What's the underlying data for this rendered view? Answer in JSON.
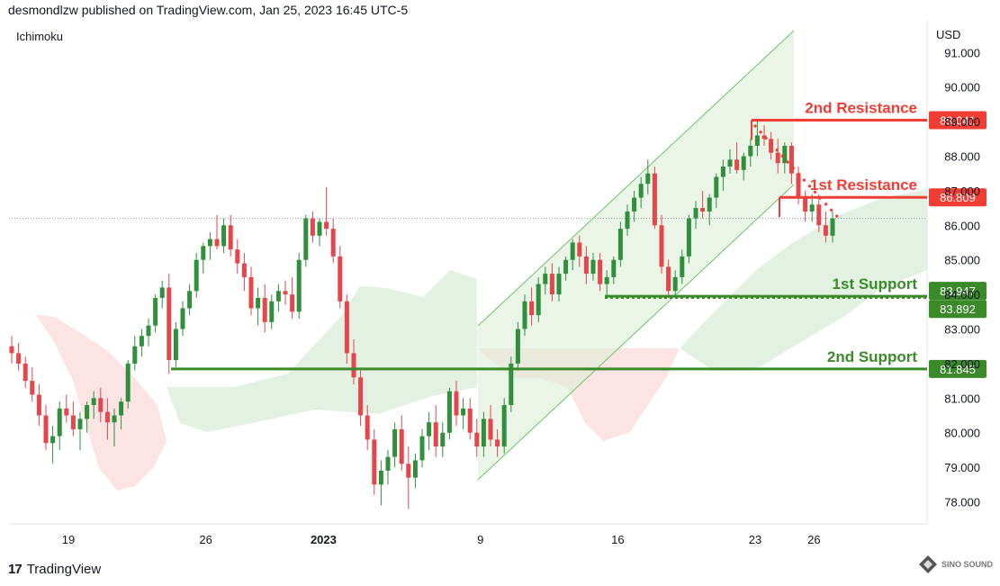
{
  "header": {
    "published": "desmondlzw published on TradingView.com, Jan 25, 2023 16:45 UTC-5"
  },
  "indicator_label": "Ichimoku",
  "currency": "USD",
  "footer": {
    "logo_mark": "17",
    "brand": "TradingView"
  },
  "watermark": {
    "line1": "SINO SOUND"
  },
  "colors": {
    "up": "#2f8f3a",
    "down": "#e5454b",
    "resistance": "#f23d35",
    "support": "#3a8a2a",
    "cloud_green": "#e3f1e3",
    "cloud_red": "#fde4e4",
    "channel": "#6cc36a"
  },
  "chart_data": {
    "type": "candlestick",
    "yaxis": {
      "min": 77.5,
      "max": 91.2,
      "ticks": [
        "78.000",
        "79.000",
        "80.000",
        "81.000",
        "82.000",
        "83.000",
        "84.000",
        "85.000",
        "86.000",
        "87.000",
        "88.000",
        "89.000",
        "90.000",
        "91.000"
      ]
    },
    "xaxis_ticks": [
      {
        "label": "19",
        "day": 19,
        "bold": false
      },
      {
        "label": "26",
        "day": 26,
        "bold": false
      },
      {
        "label": "2023",
        "day": 32,
        "bold": true
      },
      {
        "label": "9",
        "day": 40,
        "bold": false
      },
      {
        "label": "16",
        "day": 47,
        "bold": false
      },
      {
        "label": "23",
        "day": 54,
        "bold": false
      },
      {
        "label": "26",
        "day": 57,
        "bold": false
      }
    ],
    "levels": [
      {
        "label": "2nd Resistance",
        "value": 89.041,
        "value_label": "89.041",
        "kind": "resistance"
      },
      {
        "label": "1st Resistance",
        "value": 86.809,
        "value_label": "86.809",
        "kind": "resistance"
      },
      {
        "label": "1st Support",
        "value": 83.947,
        "value_label": "83.947",
        "kind": "support"
      },
      {
        "label": "",
        "value": 83.892,
        "value_label": "83.892",
        "kind": "support"
      },
      {
        "label": "2nd Support",
        "value": 81.845,
        "value_label": "81.845",
        "kind": "support"
      }
    ],
    "last_price": 86.2,
    "candles": [
      [
        82.5,
        82.8,
        82.0,
        82.3
      ],
      [
        82.3,
        82.6,
        81.8,
        82.0
      ],
      [
        82.0,
        82.2,
        81.3,
        81.5
      ],
      [
        81.5,
        81.9,
        80.9,
        81.1
      ],
      [
        81.1,
        81.4,
        80.2,
        80.5
      ],
      [
        80.5,
        80.8,
        79.5,
        79.7
      ],
      [
        79.7,
        80.2,
        79.1,
        79.9
      ],
      [
        79.9,
        80.9,
        79.5,
        80.7
      ],
      [
        80.7,
        81.1,
        80.3,
        80.5
      ],
      [
        80.5,
        80.9,
        79.9,
        80.1
      ],
      [
        80.1,
        80.6,
        79.5,
        80.4
      ],
      [
        80.4,
        80.9,
        80.0,
        80.8
      ],
      [
        80.8,
        81.2,
        80.4,
        81.0
      ],
      [
        81.0,
        81.3,
        80.3,
        80.6
      ],
      [
        80.6,
        81.0,
        79.8,
        80.3
      ],
      [
        80.3,
        80.7,
        79.6,
        80.5
      ],
      [
        80.5,
        81.0,
        80.1,
        80.9
      ],
      [
        80.9,
        82.1,
        80.7,
        82.0
      ],
      [
        82.0,
        82.8,
        81.8,
        82.5
      ],
      [
        82.5,
        83.0,
        82.2,
        82.8
      ],
      [
        82.8,
        83.3,
        82.5,
        83.1
      ],
      [
        83.1,
        84.0,
        82.9,
        83.9
      ],
      [
        83.9,
        84.4,
        83.6,
        84.2
      ],
      [
        84.2,
        84.6,
        81.7,
        82.1
      ],
      [
        82.1,
        83.2,
        81.9,
        83.0
      ],
      [
        83.0,
        83.8,
        82.8,
        83.6
      ],
      [
        83.6,
        84.3,
        83.4,
        84.1
      ],
      [
        84.1,
        85.2,
        83.9,
        85.0
      ],
      [
        85.0,
        85.5,
        84.6,
        85.4
      ],
      [
        85.4,
        85.8,
        85.0,
        85.6
      ],
      [
        85.6,
        86.3,
        85.3,
        85.4
      ],
      [
        85.4,
        86.2,
        85.2,
        86.0
      ],
      [
        86.0,
        86.3,
        85.1,
        85.3
      ],
      [
        85.3,
        85.6,
        84.6,
        84.9
      ],
      [
        84.9,
        85.2,
        84.1,
        84.5
      ],
      [
        84.5,
        84.8,
        83.4,
        83.6
      ],
      [
        83.6,
        84.2,
        83.1,
        83.9
      ],
      [
        83.9,
        84.3,
        82.9,
        83.2
      ],
      [
        83.2,
        84.0,
        83.0,
        83.8
      ],
      [
        83.8,
        84.3,
        83.5,
        84.1
      ],
      [
        84.1,
        84.4,
        83.7,
        84.0
      ],
      [
        84.0,
        84.5,
        83.3,
        83.5
      ],
      [
        83.5,
        85.2,
        83.3,
        85.0
      ],
      [
        85.0,
        86.3,
        84.8,
        86.2
      ],
      [
        86.2,
        86.4,
        85.5,
        85.7
      ],
      [
        85.7,
        86.2,
        85.4,
        86.1
      ],
      [
        86.1,
        87.1,
        85.7,
        85.9
      ],
      [
        85.9,
        86.2,
        84.9,
        85.1
      ],
      [
        85.1,
        85.4,
        83.6,
        83.8
      ],
      [
        83.8,
        84.0,
        82.0,
        82.3
      ],
      [
        82.3,
        82.7,
        81.4,
        81.6
      ],
      [
        81.6,
        81.8,
        80.2,
        80.5
      ],
      [
        80.5,
        80.8,
        79.5,
        79.8
      ],
      [
        79.8,
        80.1,
        78.2,
        78.5
      ],
      [
        78.5,
        79.2,
        77.9,
        78.9
      ],
      [
        78.9,
        79.5,
        78.5,
        79.3
      ],
      [
        79.3,
        80.3,
        79.0,
        80.1
      ],
      [
        80.1,
        80.5,
        78.9,
        79.1
      ],
      [
        79.1,
        79.6,
        77.8,
        78.7
      ],
      [
        78.7,
        79.4,
        78.4,
        79.2
      ],
      [
        79.2,
        80.1,
        79.0,
        79.9
      ],
      [
        79.9,
        80.6,
        79.5,
        80.3
      ],
      [
        80.3,
        80.8,
        79.3,
        79.6
      ],
      [
        79.6,
        80.3,
        79.3,
        80.0
      ],
      [
        80.0,
        81.3,
        79.8,
        81.2
      ],
      [
        81.2,
        81.5,
        80.2,
        80.5
      ],
      [
        80.5,
        81.0,
        80.1,
        80.7
      ],
      [
        80.7,
        81.0,
        79.8,
        80.0
      ],
      [
        80.0,
        80.4,
        79.3,
        79.6
      ],
      [
        79.6,
        80.6,
        79.3,
        80.4
      ],
      [
        80.4,
        80.8,
        79.6,
        79.8
      ],
      [
        79.8,
        80.1,
        79.3,
        79.6
      ],
      [
        79.6,
        81.0,
        79.4,
        80.8
      ],
      [
        80.8,
        82.2,
        80.6,
        82.0
      ],
      [
        82.0,
        83.2,
        81.8,
        83.0
      ],
      [
        83.0,
        84.0,
        82.8,
        83.8
      ],
      [
        83.8,
        84.2,
        83.1,
        83.4
      ],
      [
        83.4,
        84.5,
        83.2,
        84.3
      ],
      [
        84.3,
        84.8,
        84.0,
        84.6
      ],
      [
        84.6,
        84.9,
        83.8,
        84.0
      ],
      [
        84.0,
        84.8,
        83.8,
        84.6
      ],
      [
        84.6,
        85.1,
        84.4,
        85.0
      ],
      [
        85.0,
        85.6,
        84.7,
        85.5
      ],
      [
        85.5,
        85.7,
        84.8,
        85.1
      ],
      [
        85.1,
        85.4,
        84.3,
        84.6
      ],
      [
        84.6,
        85.2,
        84.4,
        85.0
      ],
      [
        85.0,
        85.2,
        84.1,
        84.3
      ],
      [
        84.3,
        84.7,
        83.9,
        84.5
      ],
      [
        84.5,
        85.1,
        84.3,
        85.0
      ],
      [
        85.0,
        86.1,
        84.8,
        85.9
      ],
      [
        85.9,
        86.6,
        85.7,
        86.4
      ],
      [
        86.4,
        87.0,
        86.1,
        86.8
      ],
      [
        86.8,
        87.4,
        86.5,
        87.2
      ],
      [
        87.2,
        87.9,
        86.9,
        87.5
      ],
      [
        87.5,
        87.7,
        85.9,
        86.0
      ],
      [
        86.0,
        86.3,
        84.6,
        84.8
      ],
      [
        84.8,
        85.0,
        83.9,
        84.1
      ],
      [
        84.1,
        84.7,
        83.9,
        84.5
      ],
      [
        84.5,
        85.3,
        84.3,
        85.1
      ],
      [
        85.1,
        86.3,
        84.9,
        86.2
      ],
      [
        86.2,
        86.7,
        85.9,
        86.5
      ],
      [
        86.5,
        87.0,
        86.2,
        86.4
      ],
      [
        86.4,
        86.9,
        86.0,
        86.8
      ],
      [
        86.8,
        87.5,
        86.5,
        87.4
      ],
      [
        87.4,
        87.9,
        87.0,
        87.7
      ],
      [
        87.7,
        88.2,
        87.5,
        87.9
      ],
      [
        87.9,
        88.4,
        87.5,
        87.6
      ],
      [
        87.6,
        88.1,
        87.3,
        88.0
      ],
      [
        88.0,
        88.5,
        87.7,
        88.3
      ],
      [
        88.3,
        89.0,
        88.0,
        88.6
      ],
      [
        88.6,
        88.9,
        88.3,
        88.5
      ],
      [
        88.5,
        88.7,
        87.9,
        88.1
      ],
      [
        88.1,
        88.5,
        87.5,
        87.8
      ],
      [
        87.8,
        88.4,
        87.5,
        88.3
      ],
      [
        88.3,
        88.4,
        87.2,
        87.5
      ],
      [
        87.5,
        87.7,
        86.6,
        86.8
      ],
      [
        86.8,
        87.0,
        86.1,
        86.4
      ],
      [
        86.4,
        86.9,
        86.1,
        86.6
      ],
      [
        86.6,
        86.9,
        85.8,
        86.0
      ],
      [
        86.0,
        86.4,
        85.5,
        85.7
      ],
      [
        85.7,
        86.4,
        85.5,
        86.2
      ]
    ]
  }
}
